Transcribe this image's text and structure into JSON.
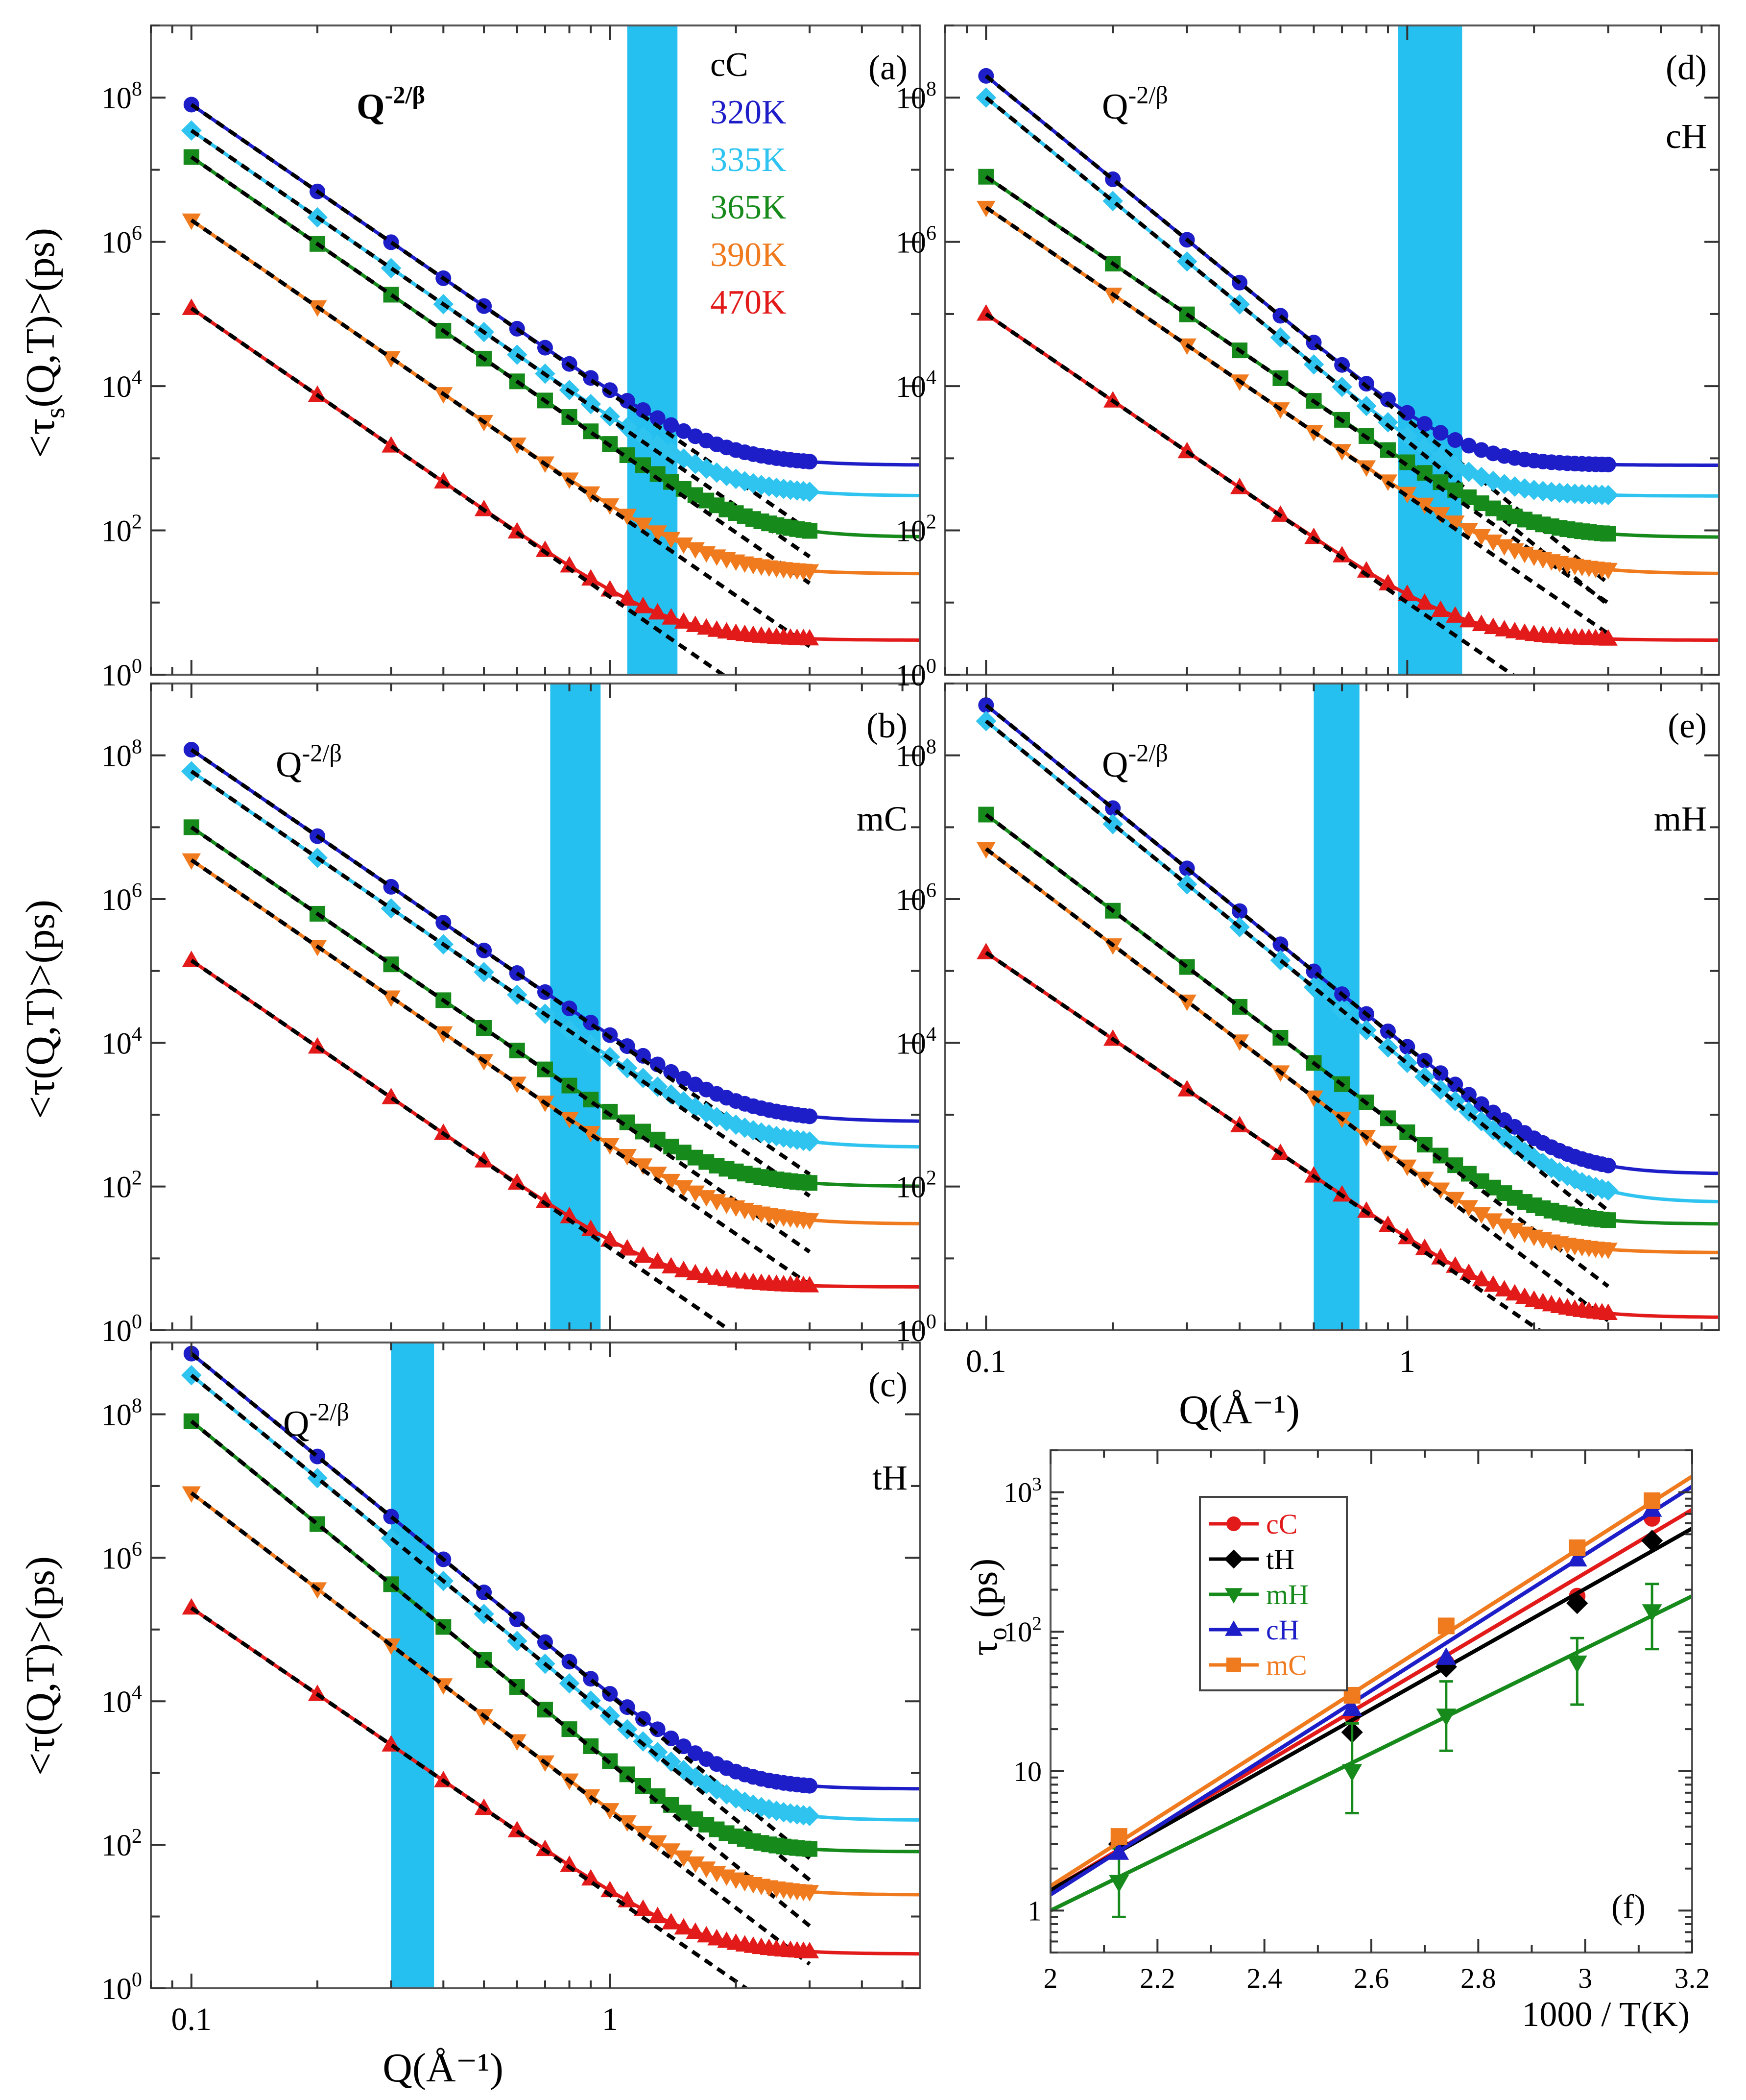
{
  "figure": {
    "y_label_s": "<τ_s(Q,T)>(ps)",
    "y_label": "<τ(Q,T)>(ps)",
    "x_label": "Q(Å⁻¹)",
    "x_tick_labels": [
      "0.1",
      "1"
    ],
    "y_tick_labels": [
      "10^0",
      "10^2",
      "10^4",
      "10^6",
      "10^8"
    ],
    "power_law_label": "Q^-2/β"
  },
  "colors": {
    "320K": "#1e1ec8",
    "335K": "#2fc4f0",
    "365K": "#178a1c",
    "390K": "#f07a1e",
    "470K": "#e21a1a",
    "band": "#26c0f0",
    "fit": "#000000"
  },
  "legend_a": {
    "title": "cC",
    "entries": [
      {
        "label": "320K",
        "color": "#1e1ec8"
      },
      {
        "label": "335K",
        "color": "#2fc4f0"
      },
      {
        "label": "365K",
        "color": "#178a1c"
      },
      {
        "label": "390K",
        "color": "#f07a1e"
      },
      {
        "label": "470K",
        "color": "#e21a1a"
      }
    ]
  },
  "chart_data": [
    {
      "panel": "a",
      "label": "(a)",
      "sample": "cC",
      "type": "scatter",
      "xlabel": "Q(Å⁻¹)",
      "ylabel": "<τ_s(Q,T)>(ps)",
      "xscale": "log",
      "yscale": "log",
      "xlim": [
        0.08,
        5.5
      ],
      "ylim": [
        1,
        1000000000
      ],
      "band_q": [
        1.1,
        1.45
      ],
      "series": [
        {
          "name": "320K",
          "marker": "circle",
          "tau_at_q01": 80000000,
          "beta": 0.5,
          "plateau": 800
        },
        {
          "name": "335K",
          "marker": "diamond",
          "tau_at_q01": 35000000,
          "beta": 0.5,
          "plateau": 300
        },
        {
          "name": "365K",
          "marker": "square",
          "tau_at_q01": 15000000,
          "beta": 0.5,
          "plateau": 80
        },
        {
          "name": "390K",
          "marker": "triangle-down",
          "tau_at_q01": 2000000,
          "beta": 0.5,
          "plateau": 25
        },
        {
          "name": "470K",
          "marker": "triangle-up",
          "tau_at_q01": 120000,
          "beta": 0.5,
          "plateau": 3
        }
      ]
    },
    {
      "panel": "b",
      "label": "(b)",
      "sample": "mC",
      "type": "scatter",
      "xlabel": "Q(Å⁻¹)",
      "ylabel": "<τ(Q,T)>(ps)",
      "xscale": "log",
      "yscale": "log",
      "xlim": [
        0.08,
        5.5
      ],
      "ylim": [
        1,
        1000000000
      ],
      "band_q": [
        0.72,
        0.95
      ],
      "series": [
        {
          "name": "320K",
          "marker": "circle",
          "tau_at_q01": 120000000,
          "beta": 0.5,
          "plateau": 800
        },
        {
          "name": "335K",
          "marker": "diamond",
          "tau_at_q01": 60000000,
          "beta": 0.5,
          "plateau": 350
        },
        {
          "name": "365K",
          "marker": "square",
          "tau_at_q01": 10000000,
          "beta": 0.5,
          "plateau": 100
        },
        {
          "name": "390K",
          "marker": "triangle-down",
          "tau_at_q01": 3500000,
          "beta": 0.5,
          "plateau": 30
        },
        {
          "name": "470K",
          "marker": "triangle-up",
          "tau_at_q01": 140000,
          "beta": 0.5,
          "plateau": 4
        }
      ]
    },
    {
      "panel": "c",
      "label": "(c)",
      "sample": "tH",
      "type": "scatter",
      "xlabel": "Q(Å⁻¹)",
      "ylabel": "<τ(Q,T)>(ps)",
      "xscale": "log",
      "yscale": "log",
      "xlim": [
        0.08,
        5.5
      ],
      "ylim": [
        1,
        1000000000
      ],
      "band_q": [
        0.3,
        0.38
      ],
      "series": [
        {
          "name": "320K",
          "marker": "circle",
          "tau_at_q01": 700000000,
          "beta": 0.42,
          "plateau": 600
        },
        {
          "name": "335K",
          "marker": "diamond",
          "tau_at_q01": 350000000,
          "beta": 0.42,
          "plateau": 220
        },
        {
          "name": "365K",
          "marker": "square",
          "tau_at_q01": 80000000,
          "beta": 0.42,
          "plateau": 80
        },
        {
          "name": "390K",
          "marker": "triangle-down",
          "tau_at_q01": 8000000,
          "beta": 0.45,
          "plateau": 20
        },
        {
          "name": "470K",
          "marker": "triangle-up",
          "tau_at_q01": 200000,
          "beta": 0.5,
          "plateau": 3
        }
      ]
    },
    {
      "panel": "d",
      "label": "(d)",
      "sample": "cH",
      "type": "scatter",
      "xlabel": "Q(Å⁻¹)",
      "ylabel": "<τ_s(Q,T)>(ps)",
      "xscale": "log",
      "yscale": "log",
      "xlim": [
        0.08,
        5.5
      ],
      "ylim": [
        1,
        1000000000
      ],
      "band_q": [
        0.95,
        1.35
      ],
      "series": [
        {
          "name": "320K",
          "marker": "circle",
          "tau_at_q01": 200000000,
          "beta": 0.42,
          "plateau": 800
        },
        {
          "name": "335K",
          "marker": "diamond",
          "tau_at_q01": 100000000,
          "beta": 0.42,
          "plateau": 300
        },
        {
          "name": "365K",
          "marker": "square",
          "tau_at_q01": 8000000,
          "beta": 0.5,
          "plateau": 80
        },
        {
          "name": "390K",
          "marker": "triangle-down",
          "tau_at_q01": 3000000,
          "beta": 0.5,
          "plateau": 25
        },
        {
          "name": "470K",
          "marker": "triangle-up",
          "tau_at_q01": 100000,
          "beta": 0.5,
          "plateau": 3
        }
      ]
    },
    {
      "panel": "e",
      "label": "(e)",
      "sample": "mH",
      "type": "scatter",
      "xlabel": "Q(Å⁻¹)",
      "ylabel": "<τ(Q,T)>(ps)",
      "xscale": "log",
      "yscale": "log",
      "xlim": [
        0.08,
        5.5
      ],
      "ylim": [
        1,
        1000000000
      ],
      "band_q": [
        0.6,
        0.77
      ],
      "series": [
        {
          "name": "320K",
          "marker": "circle",
          "tau_at_q01": 500000000,
          "beta": 0.42,
          "plateau": 150
        },
        {
          "name": "335K",
          "marker": "diamond",
          "tau_at_q01": 300000000,
          "beta": 0.42,
          "plateau": 60
        },
        {
          "name": "365K",
          "marker": "square",
          "tau_at_q01": 15000000,
          "beta": 0.45,
          "plateau": 30
        },
        {
          "name": "390K",
          "marker": "triangle-down",
          "tau_at_q01": 5000000,
          "beta": 0.45,
          "plateau": 12
        },
        {
          "name": "470K",
          "marker": "triangle-up",
          "tau_at_q01": 180000,
          "beta": 0.5,
          "plateau": 1.5
        }
      ]
    },
    {
      "panel": "f",
      "label": "(f)",
      "type": "line",
      "xlabel": "1000 / T(K)",
      "ylabel": "τ_o (ps)",
      "xscale": "linear",
      "yscale": "log",
      "xlim": [
        2,
        3.2
      ],
      "ylim": [
        0.5,
        2000
      ],
      "xticks": [
        "2",
        "2.2",
        "2.4",
        "2.6",
        "2.8",
        "3",
        "3.2"
      ],
      "yticks": [
        {
          "value": 1,
          "label": "1"
        },
        {
          "value": 10,
          "label": "10"
        },
        {
          "value": 100,
          "label": "10^2"
        },
        {
          "value": 1000,
          "label": "10^3"
        }
      ],
      "x": [
        2.128,
        2.564,
        2.74,
        2.985,
        3.125
      ],
      "series": [
        {
          "name": "cC",
          "color": "#e21a1a",
          "marker": "circle",
          "values": [
            3.2,
            25,
            60,
            180,
            650
          ],
          "fit": [
            [
              2,
              1.4
            ],
            [
              3.2,
              750
            ]
          ]
        },
        {
          "name": "tH",
          "color": "#000000",
          "marker": "diamond",
          "values": [
            3.0,
            19,
            56,
            160,
            450
          ],
          "fit": [
            [
              2,
              1.4
            ],
            [
              3.2,
              550
            ]
          ]
        },
        {
          "name": "mH",
          "color": "#178a1c",
          "marker": "triangle-down",
          "values": [
            1.6,
            10,
            25,
            60,
            140
          ],
          "errors": [
            [
              0.9,
              2.8
            ],
            [
              5,
              22
            ],
            [
              14,
              44
            ],
            [
              30,
              90
            ],
            [
              75,
              220
            ]
          ],
          "fit": [
            [
              2,
              1.0
            ],
            [
              3.2,
              180
            ]
          ]
        },
        {
          "name": "cH",
          "color": "#1e1ec8",
          "marker": "triangle-up",
          "values": [
            2.6,
            28,
            65,
            330,
            750
          ],
          "fit": [
            [
              2,
              1.3
            ],
            [
              3.2,
              1100
            ]
          ]
        },
        {
          "name": "mC",
          "color": "#f07a1e",
          "marker": "square",
          "values": [
            3.4,
            35,
            110,
            400,
            870
          ],
          "fit": [
            [
              2,
              1.5
            ],
            [
              3.2,
              1300
            ]
          ]
        }
      ]
    }
  ]
}
